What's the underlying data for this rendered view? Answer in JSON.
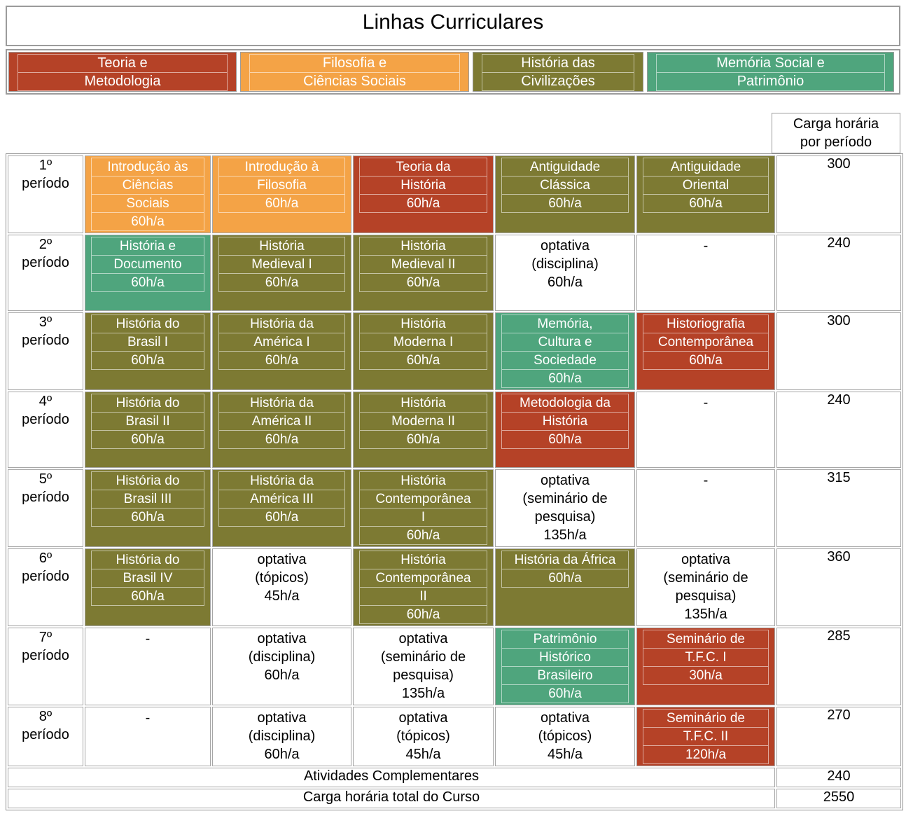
{
  "title": "Linhas Curriculares",
  "colors": {
    "red": "#b54227",
    "orange": "#f4a346",
    "olive": "#7d7a33",
    "green": "#4fa57d",
    "none": "#ffffff"
  },
  "legend": {
    "items": [
      {
        "color": "red",
        "lines": [
          "Teoria e",
          "Metodologia"
        ]
      },
      {
        "color": "orange",
        "lines": [
          "Filosofia e",
          "Ciências Sociais"
        ]
      },
      {
        "color": "olive",
        "lines": [
          "História das",
          "Civilizações"
        ]
      },
      {
        "color": "green",
        "lines": [
          "Memória Social e",
          "Patrimônio"
        ]
      }
    ]
  },
  "workload_header": [
    "Carga horária",
    "por período"
  ],
  "rows": [
    {
      "period": [
        "1º",
        "período"
      ],
      "workload": "300",
      "cells": [
        {
          "color": "orange",
          "lines": [
            "Introdução às",
            "Ciências",
            "Sociais",
            "60h/a"
          ]
        },
        {
          "color": "orange",
          "lines": [
            "Introdução à",
            "Filosofia",
            "60h/a"
          ]
        },
        {
          "color": "red",
          "lines": [
            "Teoria da",
            "História",
            "60h/a"
          ]
        },
        {
          "color": "olive",
          "lines": [
            "Antiguidade",
            "Clássica",
            "60h/a"
          ]
        },
        {
          "color": "olive",
          "lines": [
            "Antiguidade",
            "Oriental",
            "60h/a"
          ]
        }
      ]
    },
    {
      "period": [
        "2º",
        "período"
      ],
      "workload": "240",
      "cells": [
        {
          "color": "green",
          "lines": [
            "História e",
            "Documento",
            "60h/a"
          ]
        },
        {
          "color": "olive",
          "lines": [
            "História",
            "Medieval I",
            "60h/a"
          ]
        },
        {
          "color": "olive",
          "lines": [
            "História",
            "Medieval II",
            "60h/a"
          ]
        },
        {
          "color": "none",
          "lines": [
            "optativa",
            "(disciplina)",
            "60h/a"
          ]
        },
        {
          "color": "none",
          "lines": [
            "-"
          ]
        }
      ]
    },
    {
      "period": [
        "3º",
        "período"
      ],
      "workload": "300",
      "cells": [
        {
          "color": "olive",
          "lines": [
            "História do",
            "Brasil I",
            "60h/a"
          ]
        },
        {
          "color": "olive",
          "lines": [
            "História da",
            "América I",
            "60h/a"
          ]
        },
        {
          "color": "olive",
          "lines": [
            "História",
            "Moderna I",
            "60h/a"
          ]
        },
        {
          "color": "green",
          "lines": [
            "Memória,",
            "Cultura e",
            "Sociedade",
            "60h/a"
          ]
        },
        {
          "color": "red",
          "lines": [
            "Historiografia",
            "Contemporânea",
            "60h/a"
          ]
        }
      ]
    },
    {
      "period": [
        "4º",
        "período"
      ],
      "workload": "240",
      "cells": [
        {
          "color": "olive",
          "lines": [
            "História do",
            "Brasil II",
            "60h/a"
          ]
        },
        {
          "color": "olive",
          "lines": [
            "História da",
            "América II",
            "60h/a"
          ]
        },
        {
          "color": "olive",
          "lines": [
            "História",
            "Moderna II",
            "60h/a"
          ]
        },
        {
          "color": "red",
          "lines": [
            "Metodologia da",
            "História",
            "60h/a"
          ]
        },
        {
          "color": "none",
          "lines": [
            "-"
          ]
        }
      ]
    },
    {
      "period": [
        "5º",
        "período"
      ],
      "workload": "315",
      "cells": [
        {
          "color": "olive",
          "lines": [
            "História do",
            "Brasil III",
            "60h/a"
          ]
        },
        {
          "color": "olive",
          "lines": [
            "História da",
            "América III",
            "60h/a"
          ]
        },
        {
          "color": "olive",
          "lines": [
            "História",
            "Contemporânea",
            "I",
            "60h/a"
          ]
        },
        {
          "color": "none",
          "lines": [
            "optativa",
            "(seminário de",
            "pesquisa)",
            "135h/a"
          ]
        },
        {
          "color": "none",
          "lines": [
            "-"
          ]
        }
      ]
    },
    {
      "period": [
        "6º",
        "período"
      ],
      "workload": "360",
      "cells": [
        {
          "color": "olive",
          "lines": [
            "História do",
            "Brasil IV",
            "60h/a"
          ]
        },
        {
          "color": "none",
          "lines": [
            "optativa",
            "(tópicos)",
            "45h/a"
          ]
        },
        {
          "color": "olive",
          "lines": [
            "História",
            "Contemporânea",
            "II",
            "60h/a"
          ]
        },
        {
          "color": "olive",
          "lines": [
            "História da África",
            "60h/a"
          ]
        },
        {
          "color": "none",
          "lines": [
            "optativa",
            "(seminário de",
            "pesquisa)",
            "135h/a"
          ]
        }
      ]
    },
    {
      "period": [
        "7º",
        "período"
      ],
      "workload": "285",
      "cells": [
        {
          "color": "none",
          "lines": [
            "-"
          ]
        },
        {
          "color": "none",
          "lines": [
            "optativa",
            "(disciplina)",
            "60h/a"
          ]
        },
        {
          "color": "none",
          "lines": [
            "optativa",
            "(seminário de",
            "pesquisa)",
            "135h/a"
          ]
        },
        {
          "color": "green",
          "lines": [
            "Patrimônio",
            "Histórico",
            "Brasileiro",
            "60h/a"
          ]
        },
        {
          "color": "red",
          "lines": [
            "Seminário de",
            "T.F.C. I",
            "30h/a"
          ]
        }
      ]
    },
    {
      "period": [
        "8º",
        "período"
      ],
      "workload": "270",
      "cells": [
        {
          "color": "none",
          "lines": [
            "-"
          ]
        },
        {
          "color": "none",
          "lines": [
            "optativa",
            "(disciplina)",
            "60h/a"
          ]
        },
        {
          "color": "none",
          "lines": [
            "optativa",
            "(tópicos)",
            "45h/a"
          ]
        },
        {
          "color": "none",
          "lines": [
            "optativa",
            "(tópicos)",
            "45h/a"
          ]
        },
        {
          "color": "red",
          "lines": [
            "Seminário de",
            "T.F.C. II",
            "120h/a"
          ]
        }
      ]
    }
  ],
  "footer": [
    {
      "label": "Atividades Complementares",
      "value": "240"
    },
    {
      "label": "Carga horária total do Curso",
      "value": "2550"
    }
  ]
}
